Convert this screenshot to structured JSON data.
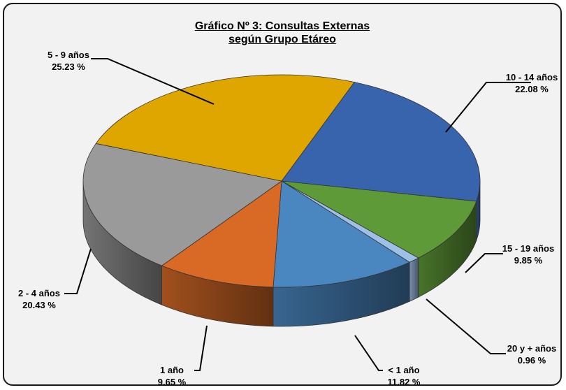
{
  "chart_data": {
    "type": "pie",
    "title": [
      "Gráfico Nº 3: Consultas Externas",
      "según Grupo Etáreo"
    ],
    "slices": [
      {
        "label": "10 - 14 años",
        "value": 22.08,
        "value_label": "22.08 %",
        "color": "#3863ad"
      },
      {
        "label": "15 - 19 años",
        "value": 9.85,
        "value_label": "9.85 %",
        "color": "#5f9a38"
      },
      {
        "label": "20 y + años",
        "value": 0.96,
        "value_label": "0.96 %",
        "color": "#9fc0e6"
      },
      {
        "label": "< 1 año",
        "value": 11.82,
        "value_label": "11.82 %",
        "color": "#4a86c0"
      },
      {
        "label": "1 año",
        "value": 9.65,
        "value_label": "9.65 %",
        "color": "#d86a26"
      },
      {
        "label": "2 - 4 años",
        "value": 20.43,
        "value_label": "20.43 %",
        "color": "#9a9a9a"
      },
      {
        "label": "5 - 9 años",
        "value": 25.23,
        "value_label": "25.23 %",
        "color": "#e0a600"
      }
    ],
    "legend": "none",
    "style": "3d-pie"
  }
}
